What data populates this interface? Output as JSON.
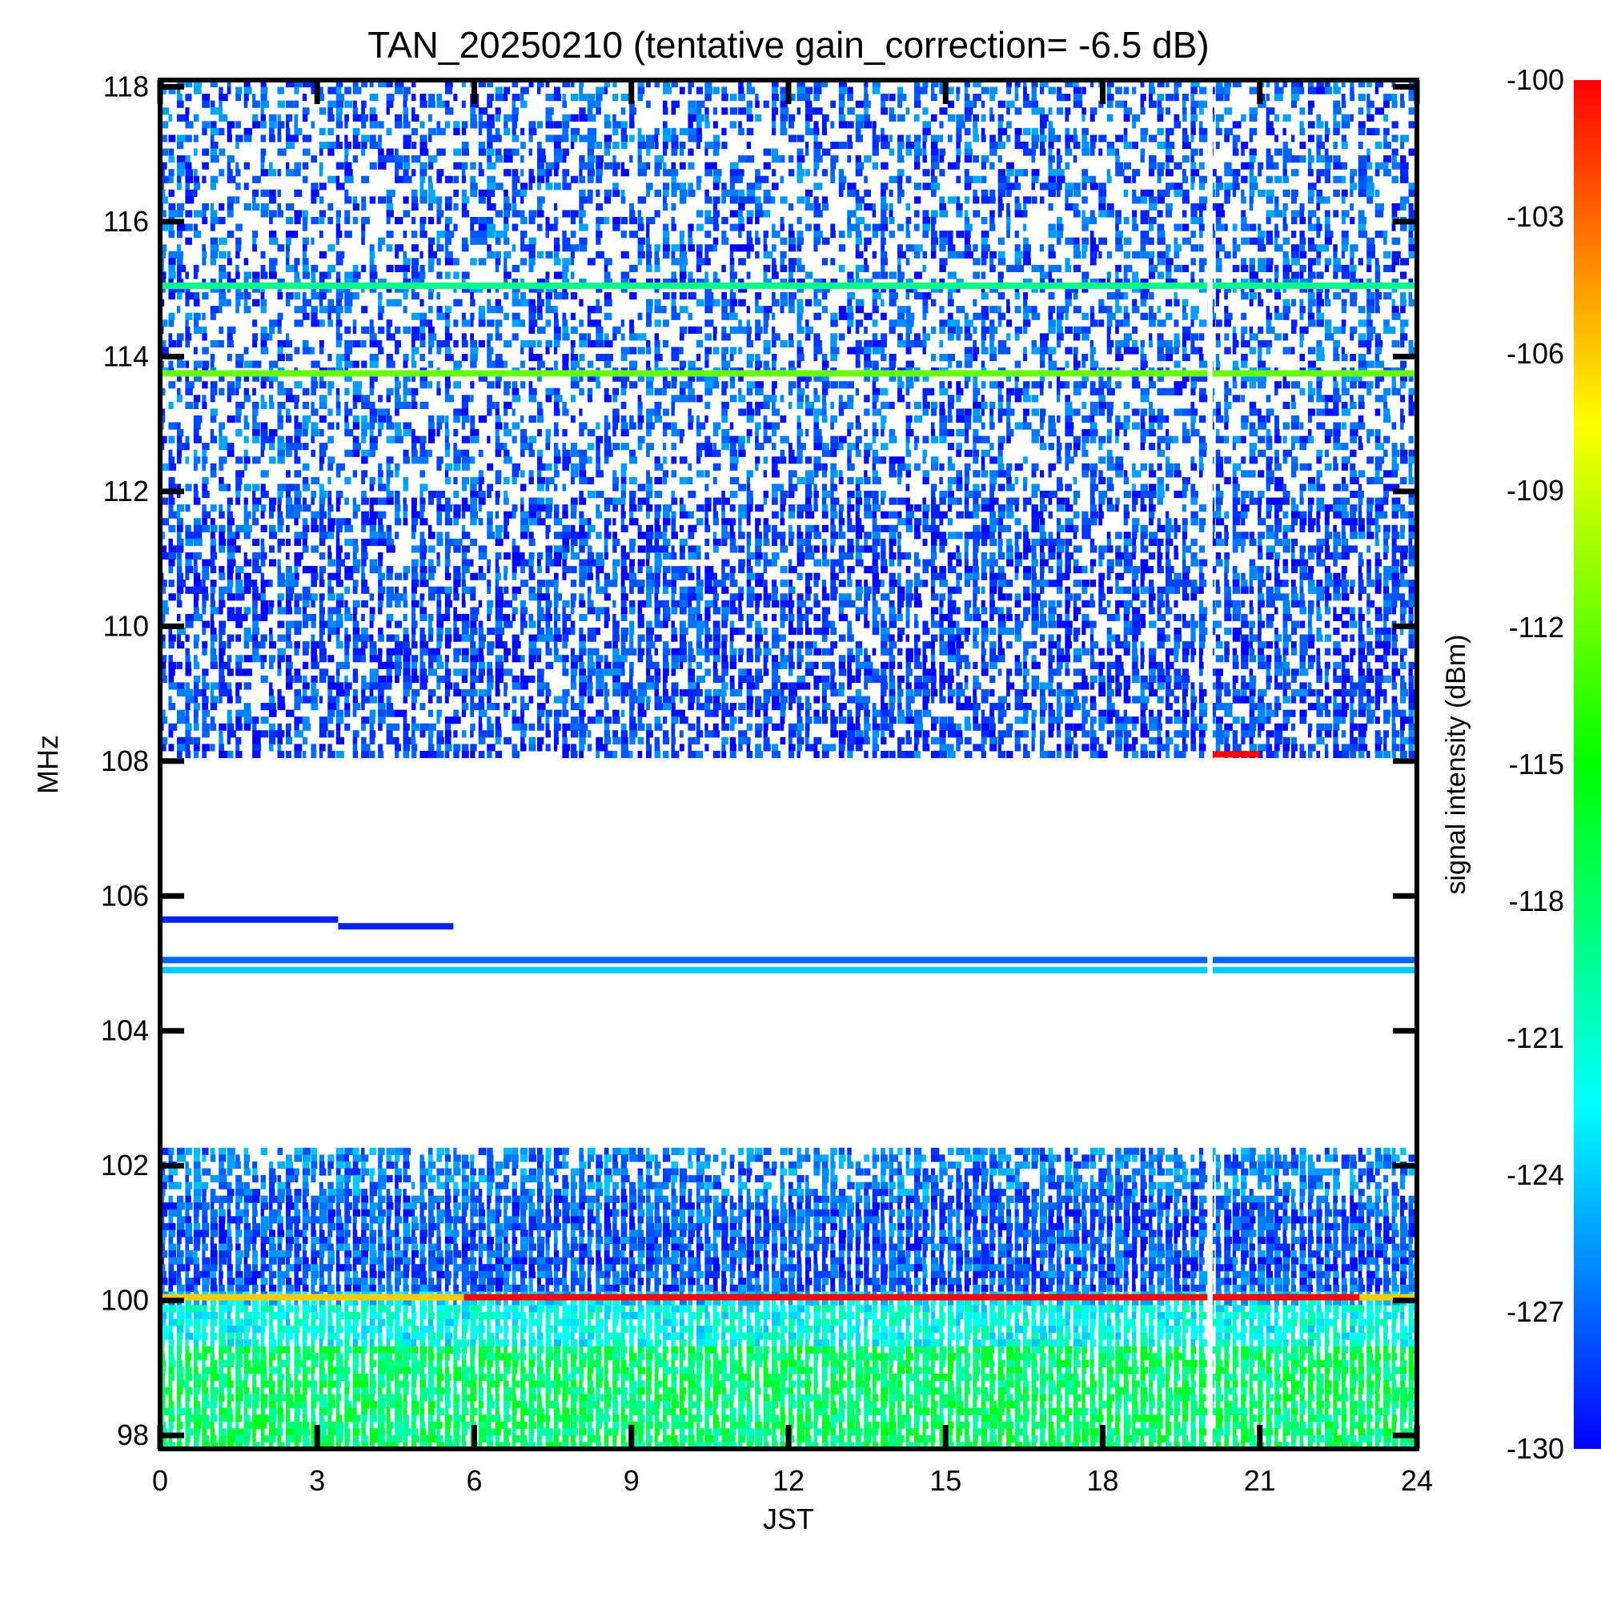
{
  "chart_data": {
    "type": "heatmap",
    "title": "TAN_20250210 (tentative gain_correction= -6.5 dB)",
    "xlabel": "JST",
    "ylabel": "MHz",
    "xlim": [
      0,
      24
    ],
    "ylim": [
      97.8,
      118.1
    ],
    "xticks": [
      "0",
      "3",
      "6",
      "9",
      "12",
      "15",
      "18",
      "21",
      "24"
    ],
    "yticks": [
      "98",
      "100",
      "102",
      "104",
      "106",
      "108",
      "110",
      "112",
      "114",
      "116",
      "118"
    ],
    "colorbar": {
      "label": "signal intensity (dBm)",
      "range": [
        -130,
        -100
      ],
      "ticks": [
        "-100",
        "-103",
        "-106",
        "-109",
        "-112",
        "-115",
        "-118",
        "-121",
        "-124",
        "-127",
        "-130"
      ],
      "colormap": [
        "#0000ff",
        "#0080ff",
        "#00ffff",
        "#00ff80",
        "#00ff00",
        "#80ff00",
        "#ffff00",
        "#ff8000",
        "#ff0000"
      ]
    },
    "background": "#ffffff",
    "regions": [
      {
        "f0": 108.1,
        "f1": 118.1,
        "dbm": -127.5,
        "density": 0.55
      },
      {
        "f0": 108.1,
        "f1": 111.9,
        "dbm": -128.0,
        "density": 0.75
      },
      {
        "f0": 101.6,
        "f1": 102.3,
        "dbm": -126.5,
        "density": 0.8
      },
      {
        "f0": 100.15,
        "f1": 101.6,
        "dbm": -127.5,
        "density": 1.0
      },
      {
        "f0": 99.9,
        "f1": 100.15,
        "dbm": -124.0,
        "density": 1.0
      },
      {
        "f0": 99.3,
        "f1": 99.9,
        "dbm": -122.0,
        "density": 1.0
      },
      {
        "f0": 97.8,
        "f1": 99.3,
        "dbm": -118.0,
        "density": 1.0
      }
    ],
    "lines": [
      {
        "freq": 115.05,
        "t0": 0,
        "t1": 24,
        "dbm": -119
      },
      {
        "freq": 113.75,
        "t0": 0,
        "t1": 24,
        "dbm": -112
      },
      {
        "freq": 108.1,
        "t0": 20.1,
        "t1": 21.0,
        "dbm": -100
      },
      {
        "freq": 105.65,
        "t0": 0,
        "t1": 3.4,
        "dbm": -129
      },
      {
        "freq": 105.55,
        "t0": 3.4,
        "t1": 5.6,
        "dbm": -129
      },
      {
        "freq": 105.05,
        "t0": 0,
        "t1": 24,
        "dbm": -127
      },
      {
        "freq": 104.9,
        "t0": 0,
        "t1": 24,
        "dbm": -124
      },
      {
        "freq": 100.05,
        "t0": 0,
        "t1": 5.8,
        "dbm": -106
      },
      {
        "freq": 100.05,
        "t0": 5.8,
        "t1": 22.9,
        "dbm": -100
      },
      {
        "freq": 100.05,
        "t0": 22.9,
        "t1": 24,
        "dbm": -106
      }
    ],
    "data_gap": {
      "t0": 20.0,
      "t1": 20.1
    }
  }
}
